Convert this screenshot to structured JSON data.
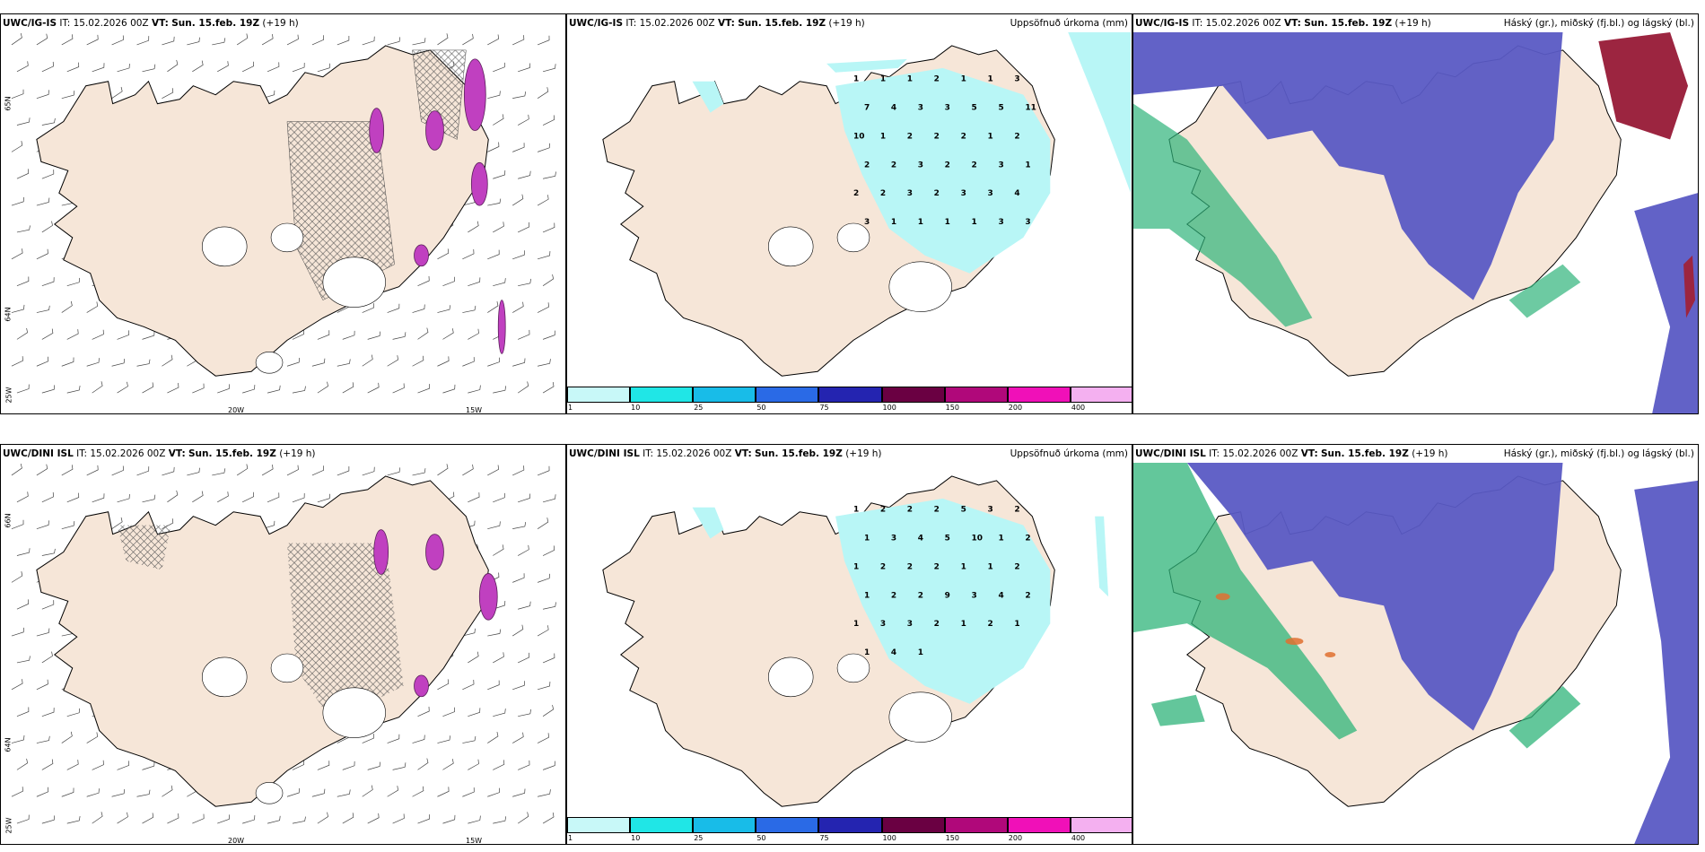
{
  "colors": {
    "land": "#f6e6d8",
    "precip_light": "#b8f6f6",
    "high_cloud": "#5a5ac4",
    "mid_cloud": "#2fb47a",
    "storm": "#9c2540",
    "ice_magenta": "#c040c0"
  },
  "panels": [
    {
      "id": "top-left",
      "model": "UWC/IG-IS",
      "it_prefix": "IT:",
      "it": "15.02.2026 00Z",
      "vt_prefix": "VT:",
      "vt": "Sun. 15.feb. 19Z",
      "lead": "(+19 h)",
      "right_title": "",
      "lon_labels": [
        "20W",
        "15W"
      ],
      "lat_labels": [
        "65N",
        "64N",
        "25W"
      ]
    },
    {
      "id": "top-middle",
      "model": "UWC/IG-IS",
      "it_prefix": "IT:",
      "it": "15.02.2026 00Z",
      "vt_prefix": "VT:",
      "vt": "Sun. 15.feb. 19Z",
      "lead": "(+19 h)",
      "right_title": "Uppsöfnuð úrkoma (mm)"
    },
    {
      "id": "top-right",
      "model": "UWC/IG-IS",
      "it_prefix": "IT:",
      "it": "15.02.2026 00Z",
      "vt_prefix": "VT:",
      "vt": "Sun. 15.feb. 19Z",
      "lead": "(+19 h)",
      "right_title": "Háský (gr.), miðský (fj.bl.) og lágský (bl.)"
    },
    {
      "id": "bottom-left",
      "model": "UWC/DINI ISL",
      "it_prefix": "IT:",
      "it": "15.02.2026 00Z",
      "vt_prefix": "VT:",
      "vt": "Sun. 15.feb. 19Z",
      "lead": "(+19 h)",
      "right_title": "",
      "lon_labels": [
        "20W",
        "15W"
      ],
      "lat_labels": [
        "66N",
        "64N",
        "25W"
      ]
    },
    {
      "id": "bottom-middle",
      "model": "UWC/DINI ISL",
      "it_prefix": "IT:",
      "it": "15.02.2026 00Z",
      "vt_prefix": "VT:",
      "vt": "Sun. 15.feb. 19Z",
      "lead": "(+19 h)",
      "right_title": "Uppsöfnuð úrkoma (mm)"
    },
    {
      "id": "bottom-right",
      "model": "UWC/DINI ISL",
      "it_prefix": "IT:",
      "it": "15.02.2026 00Z",
      "vt_prefix": "VT:",
      "vt": "Sun. 15.feb. 19Z",
      "lead": "(+19 h)",
      "right_title": "Háský (gr.), miðský (fj.bl.) og lágský (bl.)"
    }
  ],
  "precip_colorbar": {
    "ticks": [
      "1",
      "10",
      "25",
      "50",
      "75",
      "100",
      "150",
      "200",
      "400"
    ],
    "colors": [
      "#c8f8f8",
      "#20e6e6",
      "#18bce8",
      "#2a6ae6",
      "#2424b0",
      "#6a0042",
      "#b0087a",
      "#f010b8",
      "#f4b0f0"
    ]
  },
  "precip_numbers_top": [
    "1",
    "1",
    "1",
    "2",
    "1",
    "1",
    "3",
    "7",
    "4",
    "3",
    "3",
    "5",
    "5",
    "11",
    "10",
    "1",
    "2",
    "2",
    "2",
    "1",
    "2",
    "2",
    "2",
    "3",
    "2",
    "2",
    "3",
    "1",
    "2",
    "2",
    "3",
    "2",
    "3",
    "3",
    "4",
    "3",
    "1",
    "1",
    "1",
    "1",
    "3",
    "3"
  ],
  "precip_numbers_bottom": [
    "1",
    "2",
    "2",
    "2",
    "5",
    "3",
    "2",
    "1",
    "3",
    "4",
    "5",
    "10",
    "1",
    "2",
    "1",
    "2",
    "2",
    "2",
    "1",
    "1",
    "2",
    "1",
    "2",
    "2",
    "9",
    "3",
    "4",
    "2",
    "1",
    "3",
    "3",
    "2",
    "1",
    "2",
    "1",
    "1",
    "4",
    "1"
  ]
}
